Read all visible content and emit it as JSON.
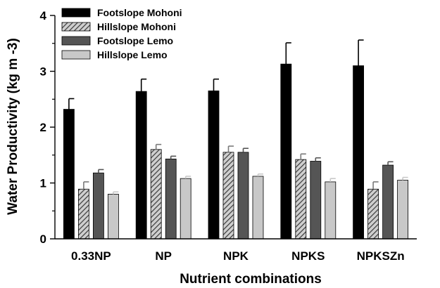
{
  "chart_data": {
    "type": "bar",
    "title": "",
    "xlabel": "Nutrient combinations",
    "ylabel": "Water Productivity (kg m -3)",
    "ylim": [
      0,
      4
    ],
    "yticks": [
      "0",
      "1",
      "2",
      "3",
      "4"
    ],
    "categories": [
      "0.33NP",
      "NP",
      "NPK",
      "NPKS",
      "NPKSZn"
    ],
    "legend_position": "top-left",
    "grid": false,
    "error_bars": true,
    "series": [
      {
        "name": "Footslope Mohoni",
        "color": "#000000",
        "pattern": "solid",
        "values": [
          2.32,
          2.64,
          2.65,
          3.13,
          3.1
        ],
        "errors": [
          0.19,
          0.22,
          0.21,
          0.38,
          0.46
        ]
      },
      {
        "name": "Hillslope Mohoni",
        "color": "#7a7a7a",
        "pattern": "hatched",
        "values": [
          0.89,
          1.6,
          1.55,
          1.42,
          0.89
        ],
        "errors": [
          0.13,
          0.09,
          0.11,
          0.1,
          0.13
        ]
      },
      {
        "name": "Footslope Lemo",
        "color": "#555555",
        "pattern": "solid",
        "values": [
          1.18,
          1.43,
          1.55,
          1.39,
          1.32
        ],
        "errors": [
          0.06,
          0.05,
          0.07,
          0.06,
          0.06
        ]
      },
      {
        "name": "Hillslope Lemo",
        "color": "#c8c8c8",
        "pattern": "solid",
        "values": [
          0.8,
          1.08,
          1.12,
          1.02,
          1.05
        ],
        "errors": [
          0.04,
          0.04,
          0.04,
          0.06,
          0.05
        ]
      }
    ]
  }
}
